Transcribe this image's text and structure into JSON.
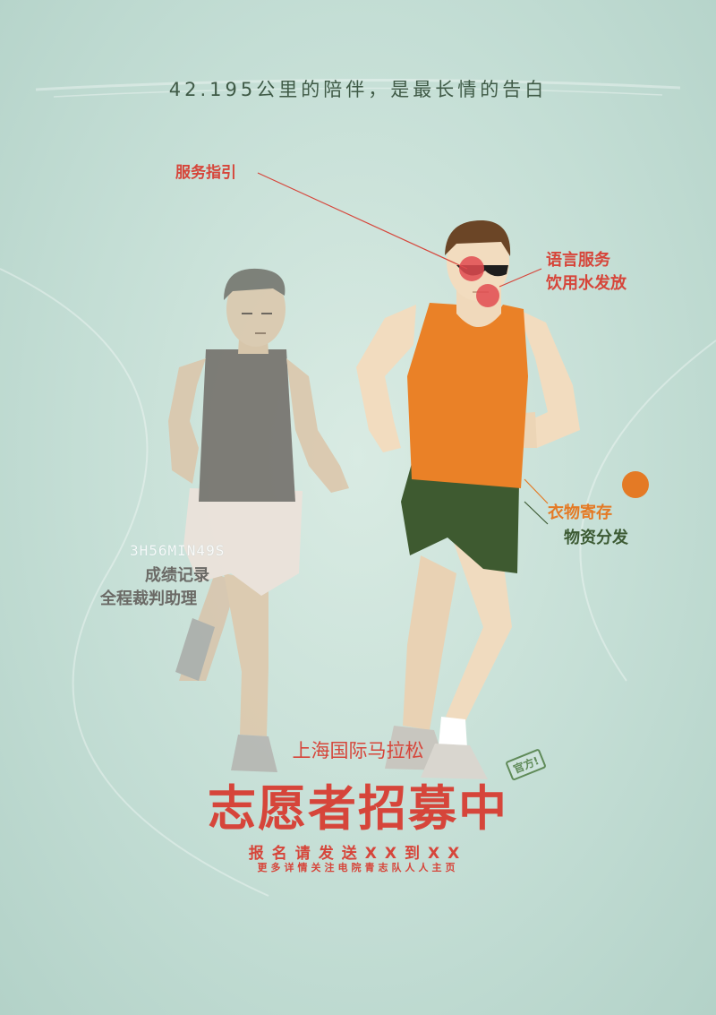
{
  "tagline": "42.195公里的陪伴，是最长情的告白",
  "labels": {
    "guide": "服务指引",
    "language": "语言服务",
    "water": "饮用水发放",
    "clothing": "衣物寄存",
    "supplies": "物资分发",
    "results": "成绩记录",
    "referee": "全程裁判助理"
  },
  "timer": "3H56MIN49S",
  "event": "上海国际马拉松",
  "headline": "志愿者招募中",
  "stamp": "官方!",
  "register": "报名请发送XX到XX",
  "details": "更多详情关注电院青志队人人主页",
  "colors": {
    "background": "#c4ded5",
    "accent_red": "#d6453a",
    "accent_orange": "#e47a25",
    "accent_green": "#3c5a33",
    "runner_gray_top": "#6f6a65",
    "runner_orange_top": "#ea8127",
    "runner_green_shorts": "#3e5a30"
  }
}
